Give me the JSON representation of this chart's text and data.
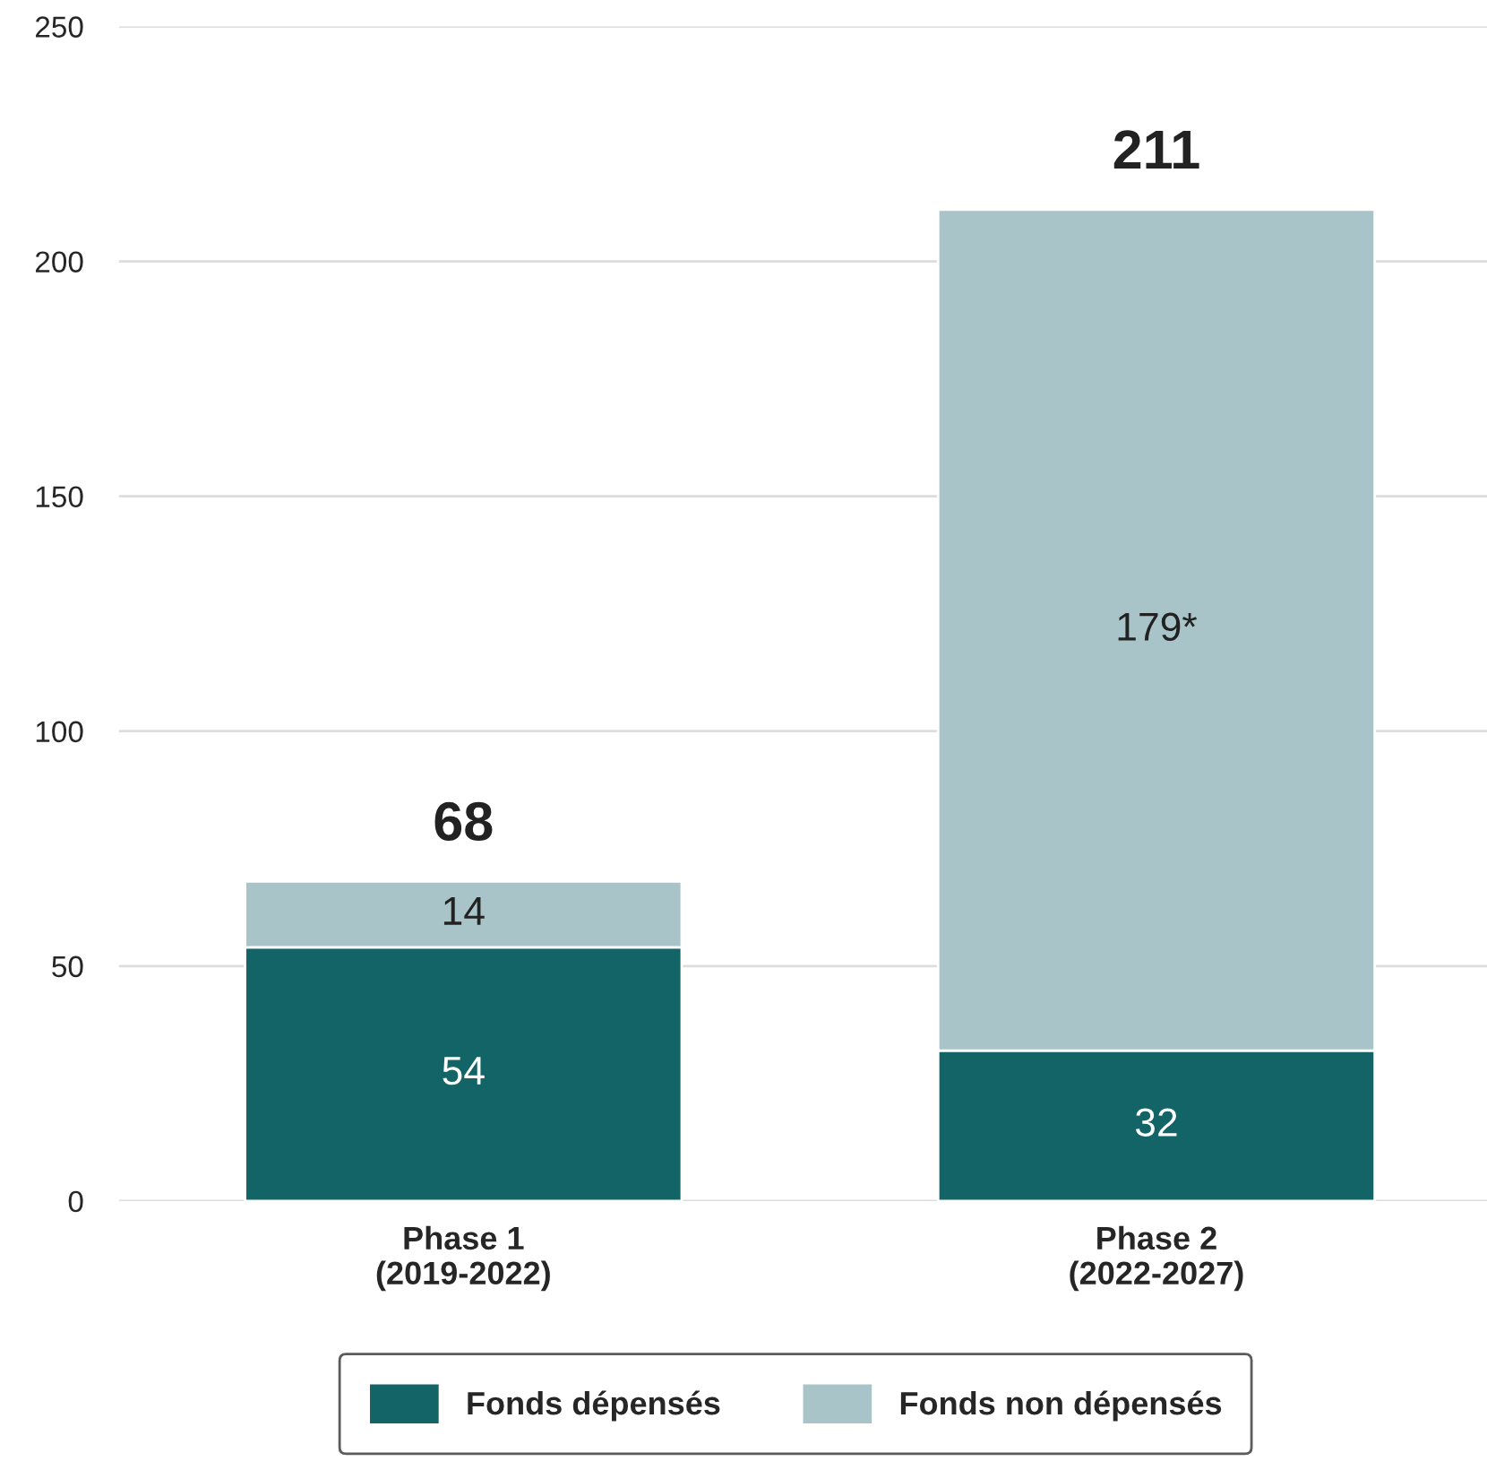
{
  "chart_data": {
    "type": "bar",
    "stacked": true,
    "categories": [
      "Phase 1\n(2019-2022)",
      "Phase 2\n(2022-2027)"
    ],
    "series": [
      {
        "name": "Fonds dépensés",
        "color": "#136466",
        "values": [
          54,
          32
        ],
        "value_labels": [
          "54",
          "32"
        ]
      },
      {
        "name": "Fonds non dépensés",
        "color": "#a8c4c8",
        "values": [
          14,
          179
        ],
        "value_labels": [
          "14",
          "179*"
        ]
      }
    ],
    "totals": [
      "68",
      "211"
    ],
    "ylim": [
      0,
      250
    ],
    "yticks": [
      0,
      50,
      100,
      150,
      200,
      250
    ],
    "grid": "y",
    "legend": "bottom"
  }
}
